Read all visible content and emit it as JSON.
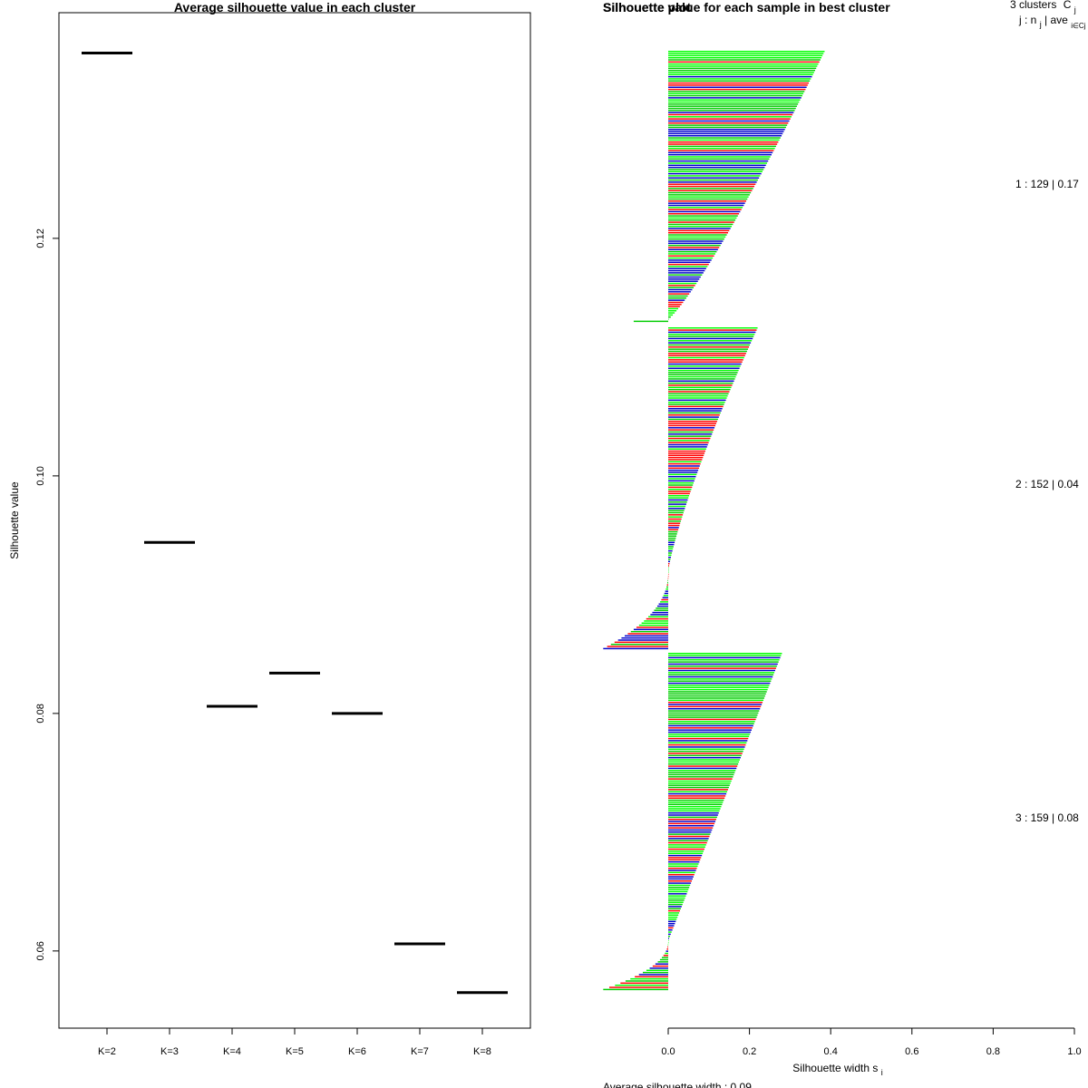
{
  "chart_data": [
    {
      "type": "line",
      "title": "Average silhouette value in each cluster",
      "xlabel": "",
      "ylabel": "Silhouette value",
      "categories": [
        "K=2",
        "K=3",
        "K=4",
        "K=5",
        "K=6",
        "K=7",
        "K=8"
      ],
      "values": [
        0.1356,
        0.0944,
        0.0806,
        0.0834,
        0.08,
        0.0606,
        0.0565
      ],
      "ylim": [
        0.0535,
        0.139
      ],
      "yticks": [
        0.06,
        0.08,
        0.1,
        0.12
      ],
      "ytick_labels": [
        "0.06",
        "0.08",
        "0.10",
        "0.12"
      ],
      "grid": false
    },
    {
      "type": "bar",
      "orientation": "horizontal",
      "title": "Silhouette value for each sample in best cluster",
      "overlapping_title": "Silhouette plot",
      "xlabel": "Silhouette width s",
      "xlabel_subscript": "i",
      "xlim": [
        -0.16,
        1.0
      ],
      "xticks": [
        0.0,
        0.2,
        0.4,
        0.6,
        0.8,
        1.0
      ],
      "xtick_labels": [
        "0.0",
        "0.2",
        "0.4",
        "0.6",
        "0.8",
        "1.0"
      ],
      "header": {
        "line1": "3 clusters",
        "c_symbol": "C",
        "c_sub": "j",
        "line2": "j :  n",
        "line2_sub": "j",
        "line2_rest": " | ave",
        "line2_sub2": "i∈Cj",
        "line2_end": " s"
      },
      "footer": "Average silhouette width : 0.09",
      "bar_colors": [
        "#ff0000",
        "#00cc00",
        "#0000cc",
        "#00ff00"
      ],
      "clusters": [
        {
          "label": "1 :  129  |  0.17",
          "n": 129,
          "max": 0.385,
          "min": -0.085,
          "positive": 128,
          "power": 0.85
        },
        {
          "label": "2 :  152  |  0.04",
          "n": 152,
          "max": 0.22,
          "min": -0.16,
          "positive": 116,
          "power": 1.25
        },
        {
          "label": "3 :  159  |  0.08",
          "n": 159,
          "max": 0.28,
          "min": -0.16,
          "positive": 136,
          "power": 1.0
        }
      ]
    }
  ]
}
